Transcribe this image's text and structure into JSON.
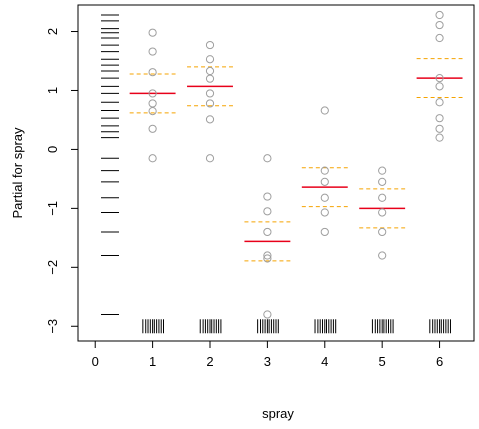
{
  "chart_data": {
    "type": "scatter",
    "title": "",
    "xlabel": "spray",
    "ylabel": "Partial for spray",
    "xlim": [
      -0.3,
      6.6
    ],
    "ylim": [
      -3.25,
      2.45
    ],
    "xticks": [
      "0",
      "1",
      "2",
      "3",
      "4",
      "5",
      "6"
    ],
    "yticks": [
      "-3",
      "-2",
      "-1",
      "0",
      "1",
      "2"
    ],
    "grid": false,
    "legend": "none",
    "colors": {
      "points": "#9e9e9e",
      "fit": "#e8001a",
      "band": "#f5a300",
      "rug": "#000000"
    },
    "fits": [
      {
        "x": 1,
        "fit": 0.95,
        "lower": 0.62,
        "upper": 1.28
      },
      {
        "x": 2,
        "fit": 1.07,
        "lower": 0.74,
        "upper": 1.4
      },
      {
        "x": 3,
        "fit": -1.56,
        "lower": -1.89,
        "upper": -1.23
      },
      {
        "x": 4,
        "fit": -0.64,
        "lower": -0.97,
        "upper": -0.31
      },
      {
        "x": 5,
        "fit": -1.0,
        "lower": -1.33,
        "upper": -0.67
      },
      {
        "x": 6,
        "fit": 1.21,
        "lower": 0.88,
        "upper": 1.54
      }
    ],
    "points": [
      {
        "x": 1,
        "y": [
          1.98,
          1.66,
          1.31,
          0.95,
          0.78,
          0.65,
          0.35,
          -0.15
        ]
      },
      {
        "x": 2,
        "y": [
          1.77,
          1.53,
          1.33,
          1.2,
          0.95,
          0.78,
          0.51,
          -0.15
        ]
      },
      {
        "x": 3,
        "y": [
          -0.15,
          -0.8,
          -1.05,
          -1.4,
          -1.8,
          -1.85,
          -2.8
        ]
      },
      {
        "x": 4,
        "y": [
          0.66,
          -0.36,
          -0.55,
          -0.82,
          -1.07,
          -1.4
        ]
      },
      {
        "x": 5,
        "y": [
          -0.36,
          -0.55,
          -0.82,
          -1.07,
          -1.4,
          -1.8
        ]
      },
      {
        "x": 6,
        "y": [
          2.28,
          2.11,
          1.89,
          1.21,
          1.07,
          0.8,
          0.53,
          0.35,
          0.2
        ]
      }
    ],
    "rug_y": [
      2.28,
      2.18,
      2.05,
      1.98,
      1.89,
      1.77,
      1.66,
      1.53,
      1.43,
      1.33,
      1.21,
      1.07,
      0.95,
      0.8,
      0.66,
      0.53,
      0.4,
      0.3,
      0.2,
      -0.15,
      -0.36,
      -0.55,
      -0.82,
      -1.07,
      -1.4,
      -1.8,
      -2.8
    ],
    "rug_x_offsets": [
      -0.17,
      -0.12,
      -0.08,
      -0.04,
      0.0,
      0.03,
      0.07,
      0.11,
      0.15,
      0.19
    ]
  }
}
